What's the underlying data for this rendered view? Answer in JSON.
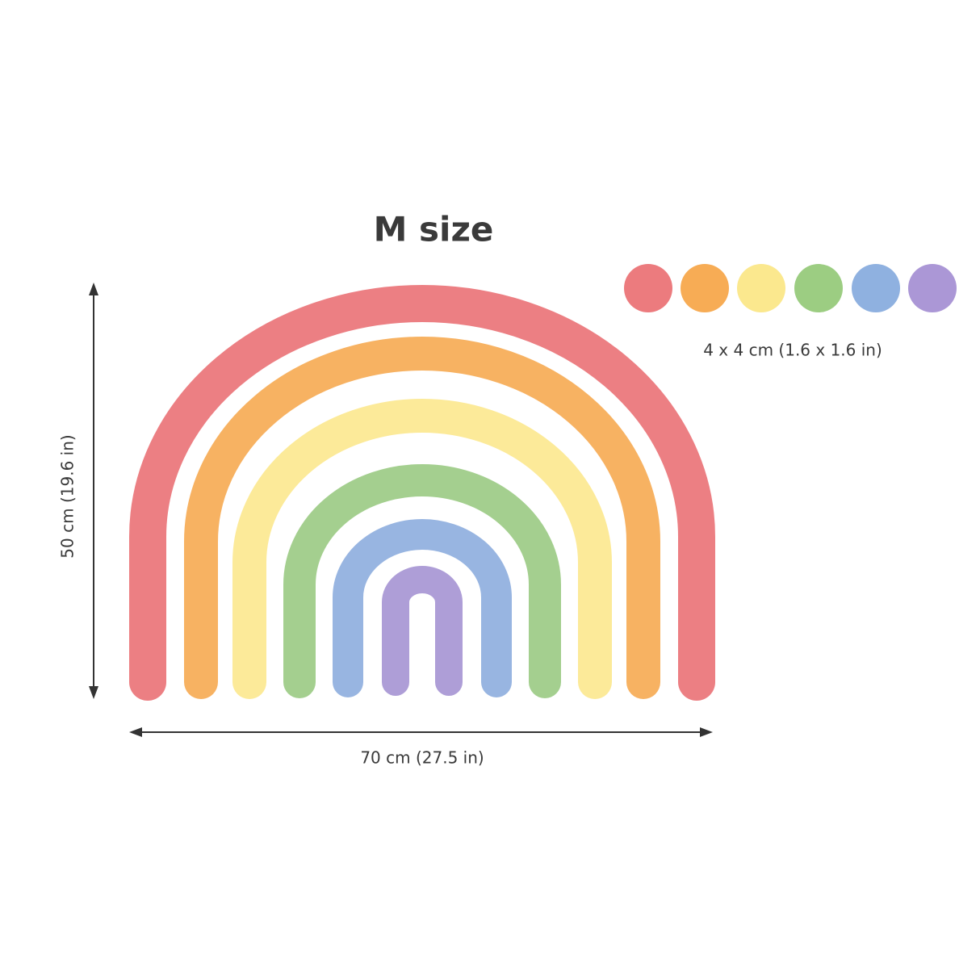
{
  "header": {
    "title": "M size"
  },
  "dots": {
    "size_label": "4 x 4 cm (1.6 x 1.6 in)"
  },
  "dimensions": {
    "height_label": "50 cm (19.6 in)",
    "width_label": "70 cm (27.5 in)"
  }
}
